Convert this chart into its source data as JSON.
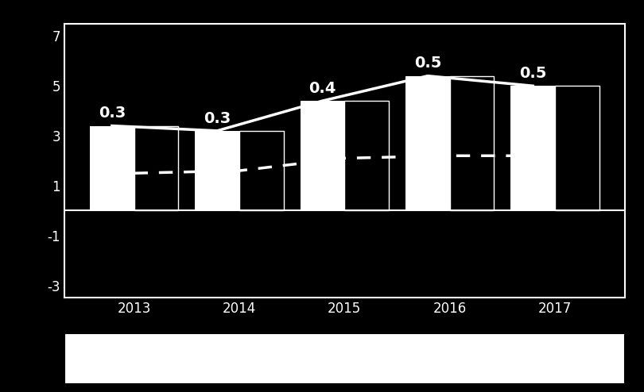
{
  "years": [
    2013,
    2014,
    2015,
    2016,
    2017
  ],
  "bar1_values": [
    3.4,
    3.2,
    4.4,
    5.4,
    5.0
  ],
  "bar2_values": [
    3.4,
    3.2,
    4.4,
    5.4,
    5.0
  ],
  "solid_line_values": [
    3.4,
    3.2,
    4.4,
    5.4,
    5.0
  ],
  "dashed_line_values": [
    1.5,
    1.6,
    2.1,
    2.2,
    2.2
  ],
  "labels": [
    "0.3",
    "0.3",
    "0.4",
    "0.5",
    "0.5"
  ],
  "label_offsets": [
    0.2,
    0.2,
    0.2,
    0.2,
    0.2
  ],
  "ylim": [
    -3.5,
    7.5
  ],
  "yticks": [
    -3,
    -1,
    1,
    3,
    5,
    7
  ],
  "background_color": "#000000",
  "plot_bg_color": "#000000",
  "bar_color_1": "#ffffff",
  "bar_color_2": "#000000",
  "bar2_edge_color": "#ffffff",
  "line_solid_color": "#ffffff",
  "line_dashed_color": "#ffffff",
  "text_color": "#ffffff",
  "border_color": "#ffffff",
  "bar_width": 0.42,
  "legend_bg_color": "#ffffff",
  "legend_border_color": "#000000",
  "font_size_labels": 14,
  "font_size_ticks": 12
}
